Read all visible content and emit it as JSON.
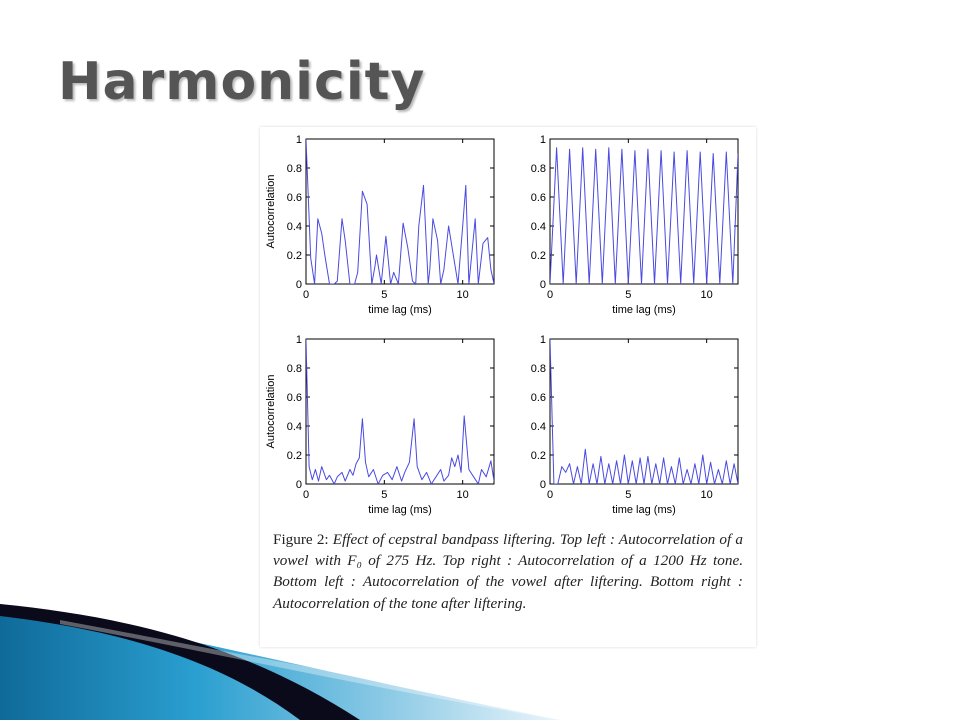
{
  "slide": {
    "title": "Harmonicity"
  },
  "figure": {
    "caption_lead": "Figure 2: ",
    "caption_body": "Effect of cepstral bandpass liftering. Top left : Autocorrelation of a vowel with F₀ of 275 Hz. Top right : Autocorrelation of a 1200 Hz tone. Bottom left : Autocorrelation of the vowel after liftering. Bottom right : Autocorrelation of the tone after liftering."
  },
  "colors": {
    "line": "#4a4ae0",
    "title": "#555555",
    "swoosh_blue": "#1b8cc0",
    "swoosh_dark": "#0a0a1a"
  },
  "chart_data": [
    {
      "type": "line",
      "title": "",
      "xlabel": "time lag (ms)",
      "ylabel": "Autocorrelation",
      "xlim": [
        0,
        12
      ],
      "ylim": [
        0,
        1
      ],
      "xticks": [
        "0",
        "5",
        "10"
      ],
      "yticks": [
        "0",
        "0.2",
        "0.4",
        "0.6",
        "0.8",
        "1"
      ],
      "x": [
        0.0,
        0.3,
        0.55,
        0.75,
        1.0,
        1.2,
        1.5,
        1.8,
        2.0,
        2.3,
        2.5,
        2.8,
        3.1,
        3.3,
        3.6,
        3.9,
        4.2,
        4.4,
        4.5,
        4.8,
        5.1,
        5.4,
        5.6,
        5.9,
        6.2,
        6.5,
        6.8,
        7.0,
        7.2,
        7.5,
        7.8,
        7.9,
        8.1,
        8.4,
        8.6,
        8.8,
        9.1,
        9.4,
        9.7,
        10.0,
        10.2,
        10.4,
        10.8,
        11.0,
        11.3,
        11.6,
        11.8,
        12.0
      ],
      "values": [
        1.0,
        0.18,
        0.0,
        0.45,
        0.35,
        0.2,
        0.0,
        0.0,
        0.02,
        0.45,
        0.3,
        0.0,
        0.0,
        0.08,
        0.64,
        0.55,
        0.0,
        0.12,
        0.2,
        0.0,
        0.33,
        0.0,
        0.08,
        0.0,
        0.42,
        0.25,
        0.02,
        0.0,
        0.4,
        0.68,
        0.0,
        0.1,
        0.45,
        0.3,
        0.0,
        0.1,
        0.4,
        0.2,
        0.0,
        0.4,
        0.68,
        0.0,
        0.45,
        0.0,
        0.28,
        0.32,
        0.1,
        0.0
      ]
    },
    {
      "type": "line",
      "title": "",
      "xlabel": "time lag (ms)",
      "ylabel": "",
      "xlim": [
        0,
        12
      ],
      "ylim": [
        0,
        1
      ],
      "xticks": [
        "0",
        "5",
        "10"
      ],
      "yticks": [
        "0",
        "0.2",
        "0.4",
        "0.6",
        "0.8",
        "1"
      ],
      "x": [
        0.0,
        0.42,
        0.84,
        1.25,
        1.67,
        2.09,
        2.5,
        2.92,
        3.34,
        3.75,
        4.17,
        4.59,
        5.0,
        5.42,
        5.84,
        6.25,
        6.67,
        7.09,
        7.5,
        7.92,
        8.34,
        8.75,
        9.17,
        9.59,
        10.0,
        10.42,
        10.84,
        11.25,
        11.67,
        12.0
      ],
      "values": [
        0.0,
        0.94,
        0.0,
        0.93,
        0.0,
        0.94,
        0.0,
        0.93,
        0.0,
        0.94,
        0.0,
        0.93,
        0.0,
        0.92,
        0.0,
        0.93,
        0.0,
        0.92,
        0.0,
        0.91,
        0.0,
        0.92,
        0.0,
        0.91,
        0.0,
        0.9,
        0.0,
        0.91,
        0.0,
        0.9
      ]
    },
    {
      "type": "line",
      "title": "",
      "xlabel": "time lag (ms)",
      "ylabel": "Autocorrelation",
      "xlim": [
        0,
        12
      ],
      "ylim": [
        0,
        1
      ],
      "xticks": [
        "0",
        "5",
        "10"
      ],
      "yticks": [
        "0",
        "0.2",
        "0.4",
        "0.6",
        "0.8",
        "1"
      ],
      "x": [
        0.0,
        0.2,
        0.4,
        0.6,
        0.8,
        1.0,
        1.3,
        1.5,
        1.8,
        2.0,
        2.3,
        2.5,
        2.8,
        3.0,
        3.2,
        3.4,
        3.6,
        3.8,
        4.0,
        4.3,
        4.6,
        4.9,
        5.2,
        5.5,
        5.8,
        6.1,
        6.3,
        6.6,
        6.9,
        7.1,
        7.4,
        7.7,
        8.0,
        8.3,
        8.6,
        8.8,
        9.1,
        9.3,
        9.5,
        9.7,
        9.9,
        10.1,
        10.4,
        10.7,
        11.0,
        11.2,
        11.5,
        11.8,
        12.0
      ],
      "values": [
        1.0,
        0.12,
        0.03,
        0.1,
        0.02,
        0.12,
        0.03,
        0.06,
        0.0,
        0.05,
        0.08,
        0.02,
        0.1,
        0.06,
        0.14,
        0.18,
        0.45,
        0.15,
        0.05,
        0.1,
        0.0,
        0.06,
        0.08,
        0.03,
        0.12,
        0.02,
        0.08,
        0.15,
        0.45,
        0.12,
        0.03,
        0.08,
        0.0,
        0.05,
        0.1,
        0.02,
        0.06,
        0.18,
        0.12,
        0.2,
        0.08,
        0.47,
        0.1,
        0.05,
        0.0,
        0.1,
        0.05,
        0.16,
        0.02
      ]
    },
    {
      "type": "line",
      "title": "",
      "xlabel": "time lag (ms)",
      "ylabel": "",
      "xlim": [
        0,
        12
      ],
      "ylim": [
        0,
        1
      ],
      "xticks": [
        "0",
        "5",
        "10"
      ],
      "yticks": [
        "0",
        "0.2",
        "0.4",
        "0.6",
        "0.8",
        "1"
      ],
      "x": [
        0.0,
        0.25,
        0.5,
        0.75,
        1.0,
        1.25,
        1.5,
        1.75,
        2.0,
        2.25,
        2.5,
        2.75,
        3.0,
        3.25,
        3.5,
        3.75,
        4.0,
        4.25,
        4.5,
        4.75,
        5.0,
        5.25,
        5.5,
        5.75,
        6.0,
        6.25,
        6.5,
        6.75,
        7.0,
        7.25,
        7.5,
        7.75,
        8.0,
        8.25,
        8.5,
        8.75,
        9.0,
        9.25,
        9.5,
        9.75,
        10.0,
        10.25,
        10.5,
        10.75,
        11.0,
        11.25,
        11.5,
        11.75,
        12.0
      ],
      "values": [
        1.0,
        0.0,
        0.0,
        0.12,
        0.08,
        0.14,
        0.0,
        0.12,
        0.0,
        0.24,
        0.0,
        0.14,
        0.0,
        0.19,
        0.0,
        0.14,
        0.0,
        0.16,
        0.0,
        0.2,
        0.0,
        0.16,
        0.0,
        0.18,
        0.0,
        0.19,
        0.0,
        0.14,
        0.0,
        0.18,
        0.0,
        0.12,
        0.0,
        0.18,
        0.0,
        0.1,
        0.0,
        0.14,
        0.0,
        0.2,
        0.0,
        0.15,
        0.0,
        0.1,
        0.0,
        0.16,
        0.0,
        0.14,
        0.0
      ]
    }
  ]
}
